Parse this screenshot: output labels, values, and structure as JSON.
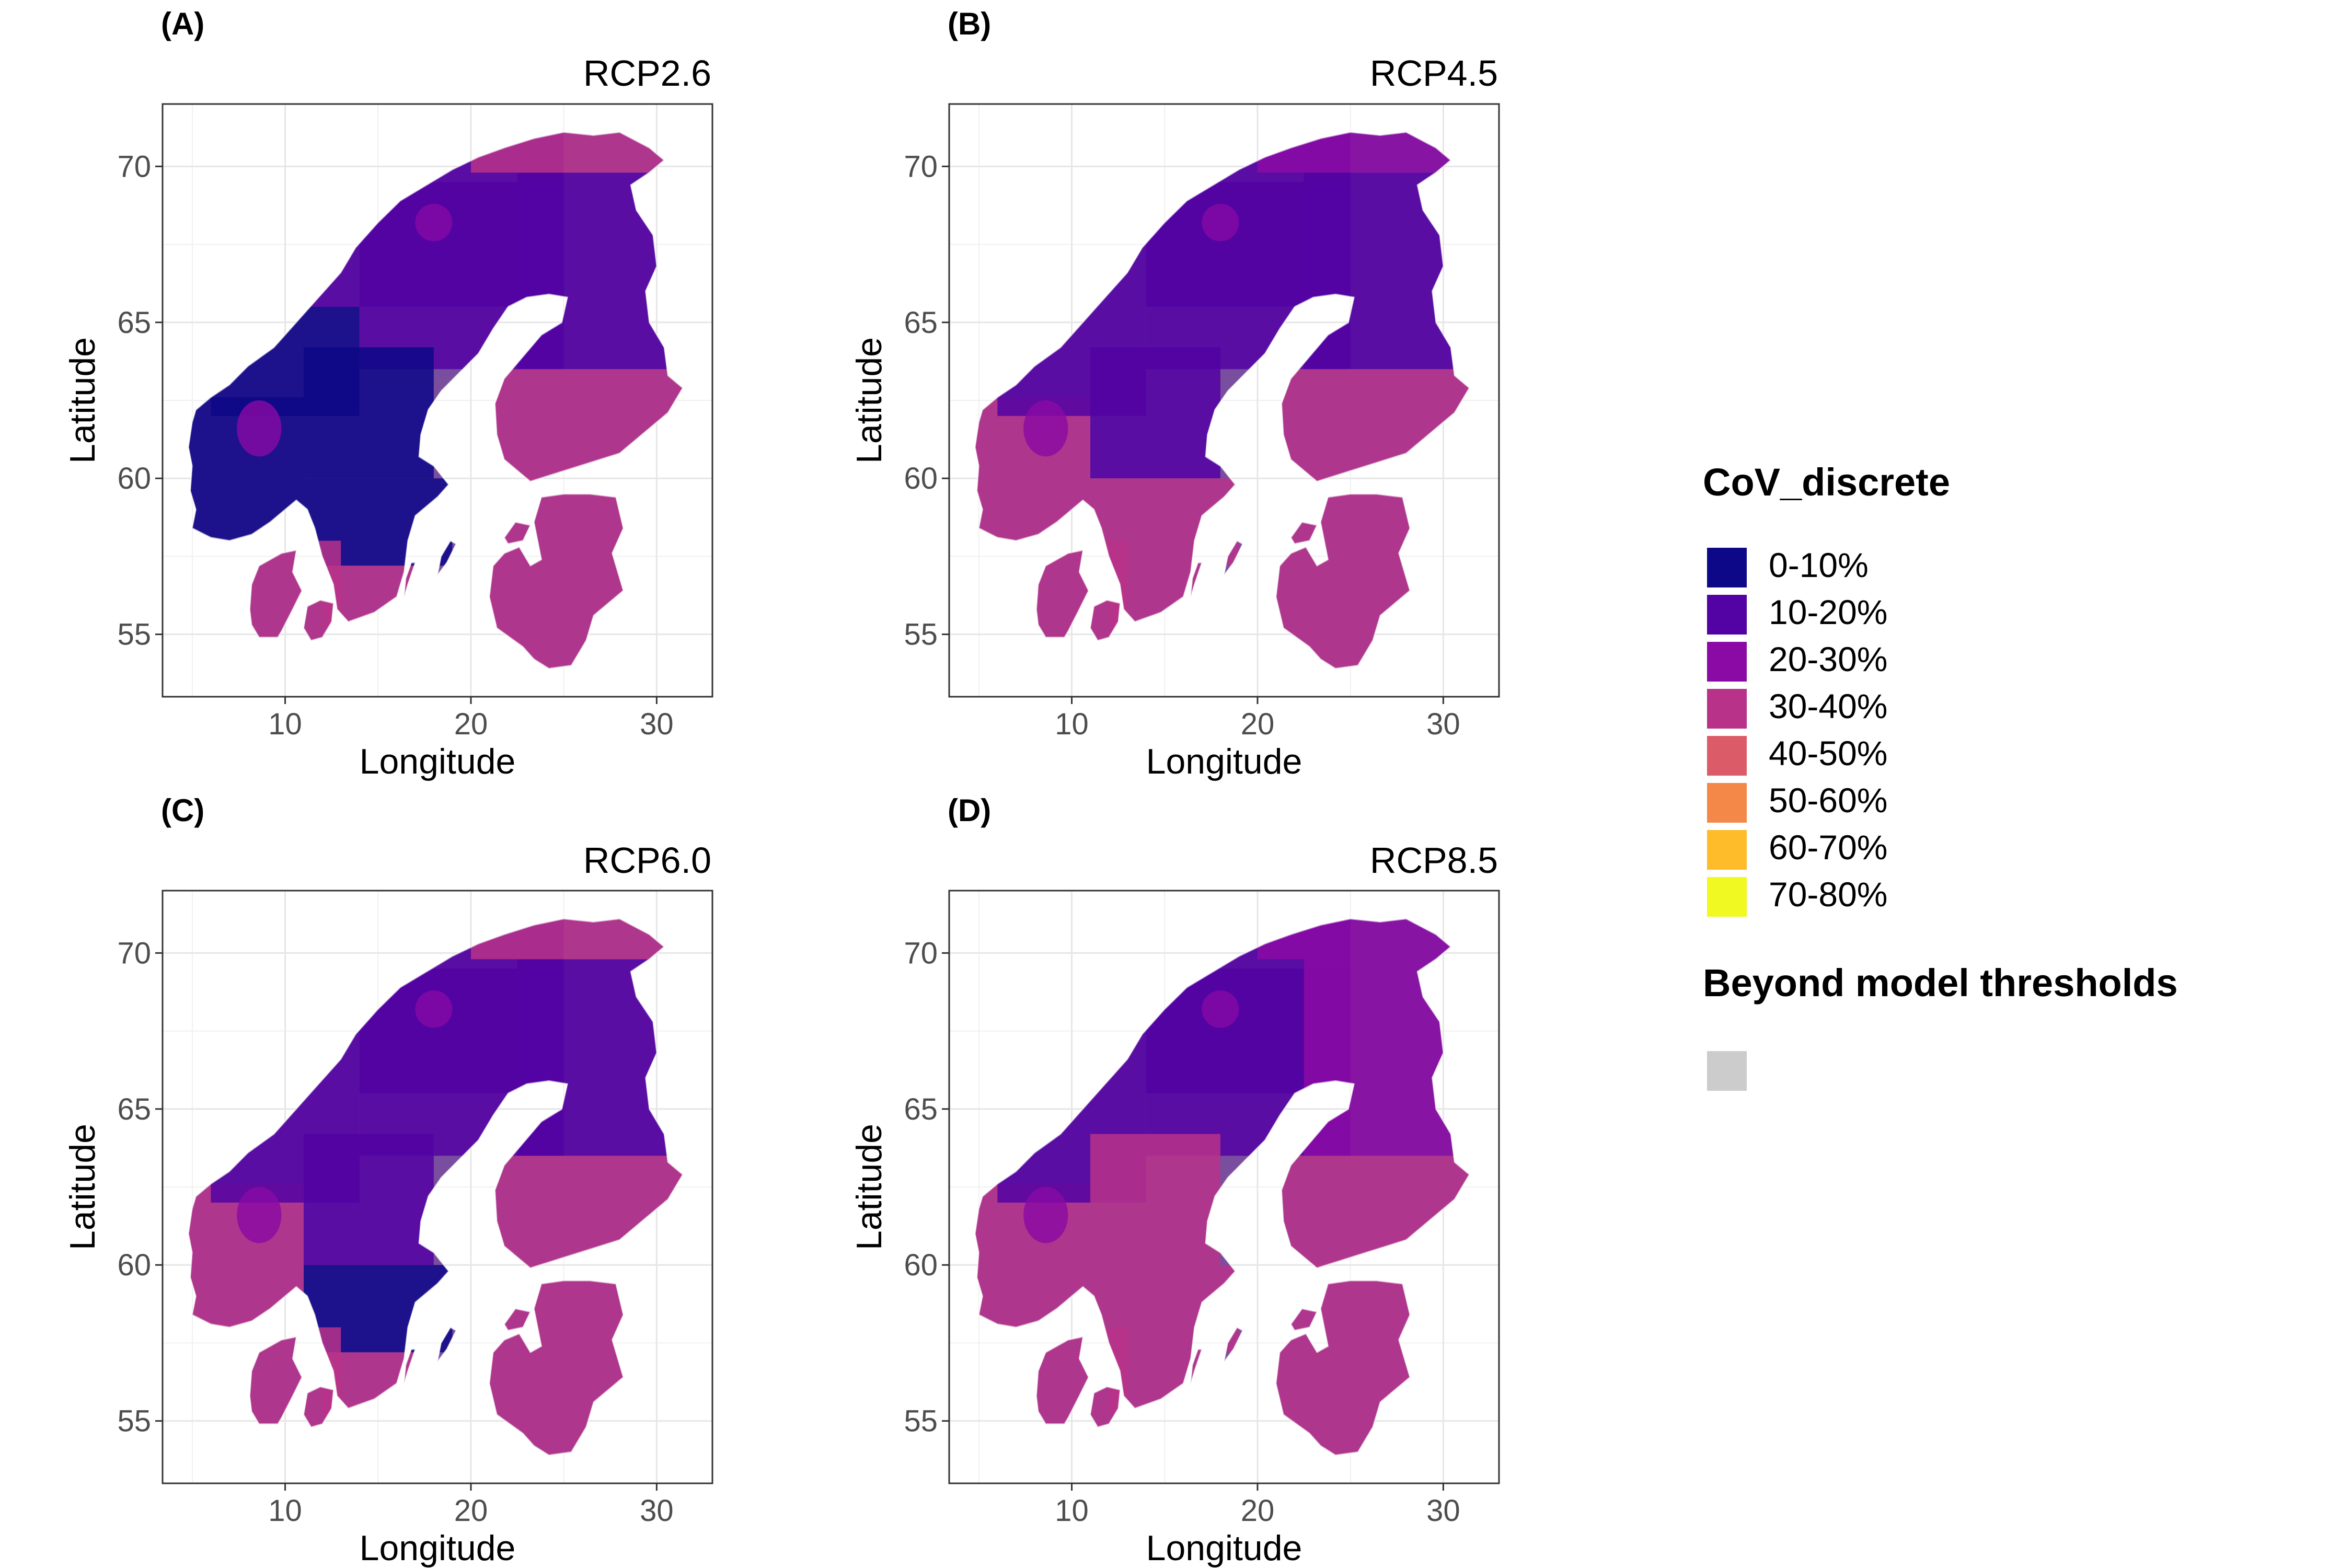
{
  "panels": [
    {
      "tag": "(A)",
      "title": "RCP2.6",
      "xlabel": "Longitude",
      "ylabel": "Latitude",
      "xticks": [
        "10",
        "20",
        "30"
      ],
      "yticks": [
        "55",
        "60",
        "65",
        "70"
      ],
      "regions": {
        "norway_north": "10-20%",
        "norway_mid": "0-10%",
        "norway_south": "0-10%",
        "mountains": "20-30%",
        "sweden_north": "10-20%",
        "sweden_central": "0-10%",
        "sweden_south": "0-10%",
        "sweden_scania": "30-40%",
        "finland_north": "10-20%",
        "finland_south": "30-40%",
        "baltics": "30-40%",
        "baltics_south": "30-40%",
        "denmark": "30-40%",
        "north_strip": "30-40%"
      }
    },
    {
      "tag": "(B)",
      "title": "RCP4.5",
      "xlabel": "Longitude",
      "ylabel": "Latitude",
      "xticks": [
        "10",
        "20",
        "30"
      ],
      "yticks": [
        "55",
        "60",
        "65",
        "70"
      ],
      "regions": {
        "norway_north": "10-20%",
        "norway_mid": "10-20%",
        "norway_south": "30-40%",
        "mountains": "20-30%",
        "sweden_north": "10-20%",
        "sweden_central": "10-20%",
        "sweden_south": "30-40%",
        "sweden_scania": "30-40%",
        "finland_north": "10-20%",
        "finland_south": "30-40%",
        "baltics": "30-40%",
        "baltics_south": "30-40%",
        "denmark": "30-40%",
        "north_strip": "20-30%"
      }
    },
    {
      "tag": "(C)",
      "title": "RCP6.0",
      "xlabel": "Longitude",
      "ylabel": "Latitude",
      "xticks": [
        "10",
        "20",
        "30"
      ],
      "yticks": [
        "55",
        "60",
        "65",
        "70"
      ],
      "regions": {
        "norway_north": "10-20%",
        "norway_mid": "10-20%",
        "norway_south": "30-40%",
        "mountains": "20-30%",
        "sweden_north": "10-20%",
        "sweden_central": "10-20%",
        "sweden_south": "0-10%",
        "sweden_scania": "30-40%",
        "finland_north": "10-20%",
        "finland_south": "30-40%",
        "baltics": "30-40%",
        "baltics_south": "30-40%",
        "denmark": "30-40%",
        "north_strip": "30-40%"
      }
    },
    {
      "tag": "(D)",
      "title": "RCP8.5",
      "xlabel": "Longitude",
      "ylabel": "Latitude",
      "xticks": [
        "10",
        "20",
        "30"
      ],
      "yticks": [
        "55",
        "60",
        "65",
        "70"
      ],
      "regions": {
        "norway_north": "10-20%",
        "norway_mid": "10-20%",
        "norway_south": "30-40%",
        "mountains": "20-30%",
        "sweden_north": "10-20%",
        "sweden_central": "30-40%",
        "sweden_south": "30-40%",
        "sweden_scania": "30-40%",
        "finland_north": "20-30%",
        "finland_south": "30-40%",
        "baltics": "30-40%",
        "baltics_south": "30-40%",
        "denmark": "30-40%",
        "north_strip": "20-30%"
      }
    }
  ],
  "legend": {
    "title": "CoV_discrete",
    "items": [
      {
        "label": "0-10%",
        "color": "#0d0887"
      },
      {
        "label": "10-20%",
        "color": "#5302a3"
      },
      {
        "label": "20-30%",
        "color": "#8b0aa5"
      },
      {
        "label": "30-40%",
        "color": "#b83289"
      },
      {
        "label": "40-50%",
        "color": "#db5c68"
      },
      {
        "label": "50-60%",
        "color": "#f48849"
      },
      {
        "label": "60-70%",
        "color": "#febc2a"
      },
      {
        "label": "70-80%",
        "color": "#f0f921"
      }
    ],
    "na_title": "Beyond model thresholds",
    "na_color": "#cccccc"
  }
}
